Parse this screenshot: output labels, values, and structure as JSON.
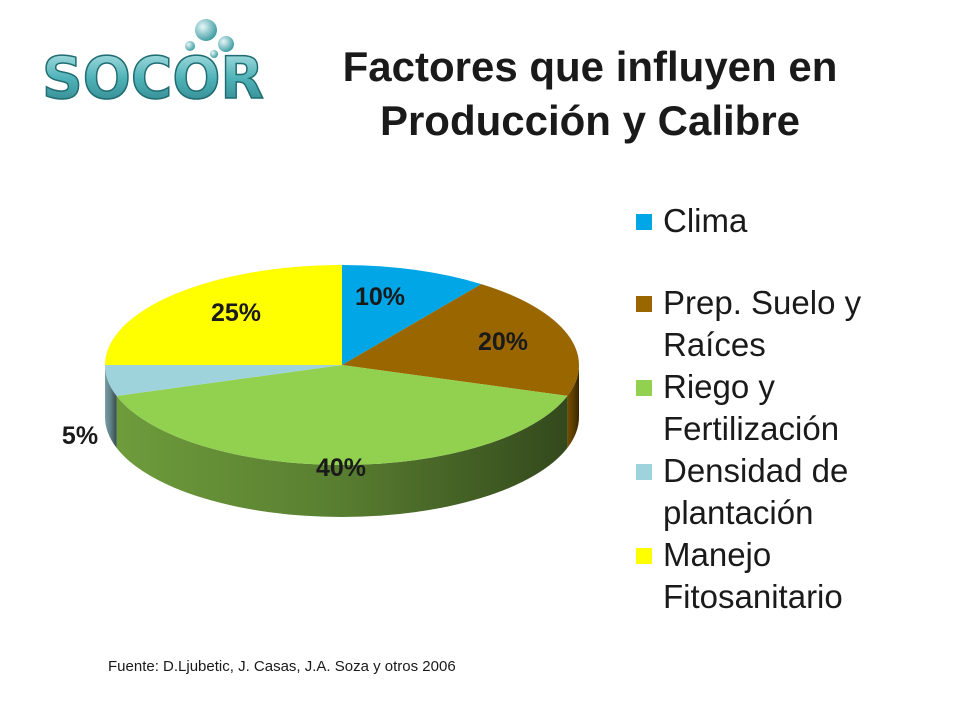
{
  "logo": {
    "text": "SOCOR"
  },
  "title": {
    "line1": "Factores que influyen en",
    "line2": "Producción y Calibre"
  },
  "legend": [
    {
      "line1": "Clima",
      "line2": "",
      "color": "#00a6e6"
    },
    {
      "line1": "Prep. Suelo y",
      "line2": "Raíces",
      "color": "#996600"
    },
    {
      "line1": "Riego y",
      "line2": "Fertilización",
      "color": "#92d050"
    },
    {
      "line1": "Densidad de",
      "line2": "plantación",
      "color": "#9ed3dc"
    },
    {
      "line1": "Manejo",
      "line2": "Fitosanitario",
      "color": "#ffff00"
    }
  ],
  "chart_data": {
    "type": "pie",
    "style": "3d",
    "title": "",
    "categories": [
      "Clima",
      "Prep. Suelo y Raíces",
      "Riego y Fertilización",
      "Densidad de plantación",
      "Manejo Fitosanitario"
    ],
    "values": [
      10,
      20,
      40,
      5,
      25
    ],
    "labels": [
      "10%",
      "20%",
      "40%",
      "5%",
      "25%"
    ],
    "colors": [
      "#00a6e6",
      "#996600",
      "#92d050",
      "#9ed3dc",
      "#ffff00"
    ],
    "legend_position": "right"
  },
  "footer": {
    "source": "Fuente: D.Ljubetic, J. Casas, J.A. Soza y otros 2006"
  }
}
